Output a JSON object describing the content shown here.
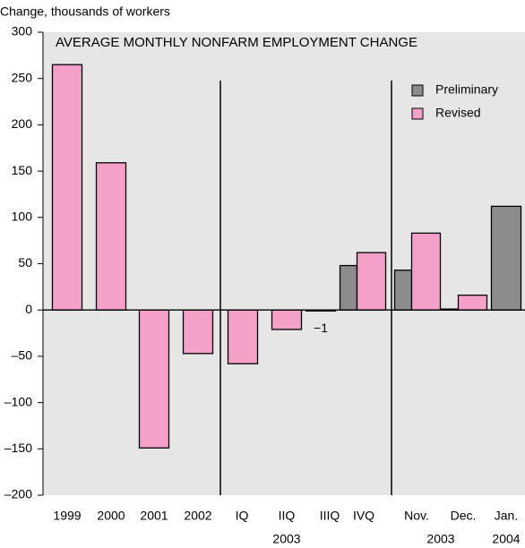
{
  "chart_data": {
    "type": "bar",
    "title": "AVERAGE MONTHLY NONFARM EMPLOYMENT CHANGE",
    "y_label": "Change, thousands of workers",
    "categories": [
      "1999",
      "2000",
      "2001",
      "2002",
      "IQ",
      "IIQ",
      "IIIQ",
      "IVQ",
      "Nov.",
      "Dec.",
      "Jan."
    ],
    "group_labels": [
      "2003",
      "2003",
      "2004"
    ],
    "series": [
      {
        "name": "Preliminary",
        "color": "#8c8c8c",
        "values": [
          null,
          null,
          null,
          null,
          null,
          null,
          null,
          48,
          43,
          1,
          112
        ]
      },
      {
        "name": "Revised",
        "color": "#f4a0c8",
        "values": [
          265,
          159,
          -149,
          -47,
          -58,
          -21,
          -1,
          62,
          83,
          16,
          null
        ],
        "value_labels": [
          null,
          null,
          null,
          null,
          null,
          null,
          "−1",
          null,
          null,
          null,
          null
        ],
        "value_label_color": "#e0007a"
      }
    ],
    "ylim": [
      -200,
      300
    ],
    "yticks": [
      {
        "value": -200,
        "label": "–200"
      },
      {
        "value": -150,
        "label": "–150"
      },
      {
        "value": -100,
        "label": "–100"
      },
      {
        "value": -50,
        "label": "–50"
      },
      0,
      50,
      100,
      150,
      200,
      250,
      300
    ],
    "grid": false,
    "legend": "upper right"
  }
}
